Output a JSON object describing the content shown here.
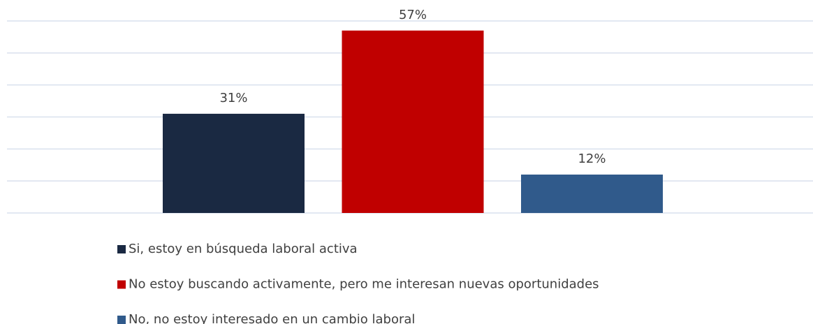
{
  "chart_data": {
    "type": "bar",
    "series": [
      {
        "name": "Si, estoy en búsqueda laboral activa",
        "color": "#1a2942",
        "values": [
          31
        ],
        "value_labels": [
          "31%"
        ]
      },
      {
        "name": "No estoy buscando activamente, pero me interesan nuevas oportunidades",
        "color": "#c00000",
        "values": [
          57
        ],
        "value_labels": [
          "57%"
        ]
      },
      {
        "name": "No, no estoy interesado en un cambio laboral",
        "color": "#305a8b",
        "values": [
          12
        ],
        "value_labels": [
          "12%"
        ]
      }
    ],
    "ylim": [
      0,
      60
    ],
    "yticks": [
      0,
      10,
      20,
      30,
      40,
      50,
      60
    ],
    "grid": true,
    "legend": "bottom"
  }
}
